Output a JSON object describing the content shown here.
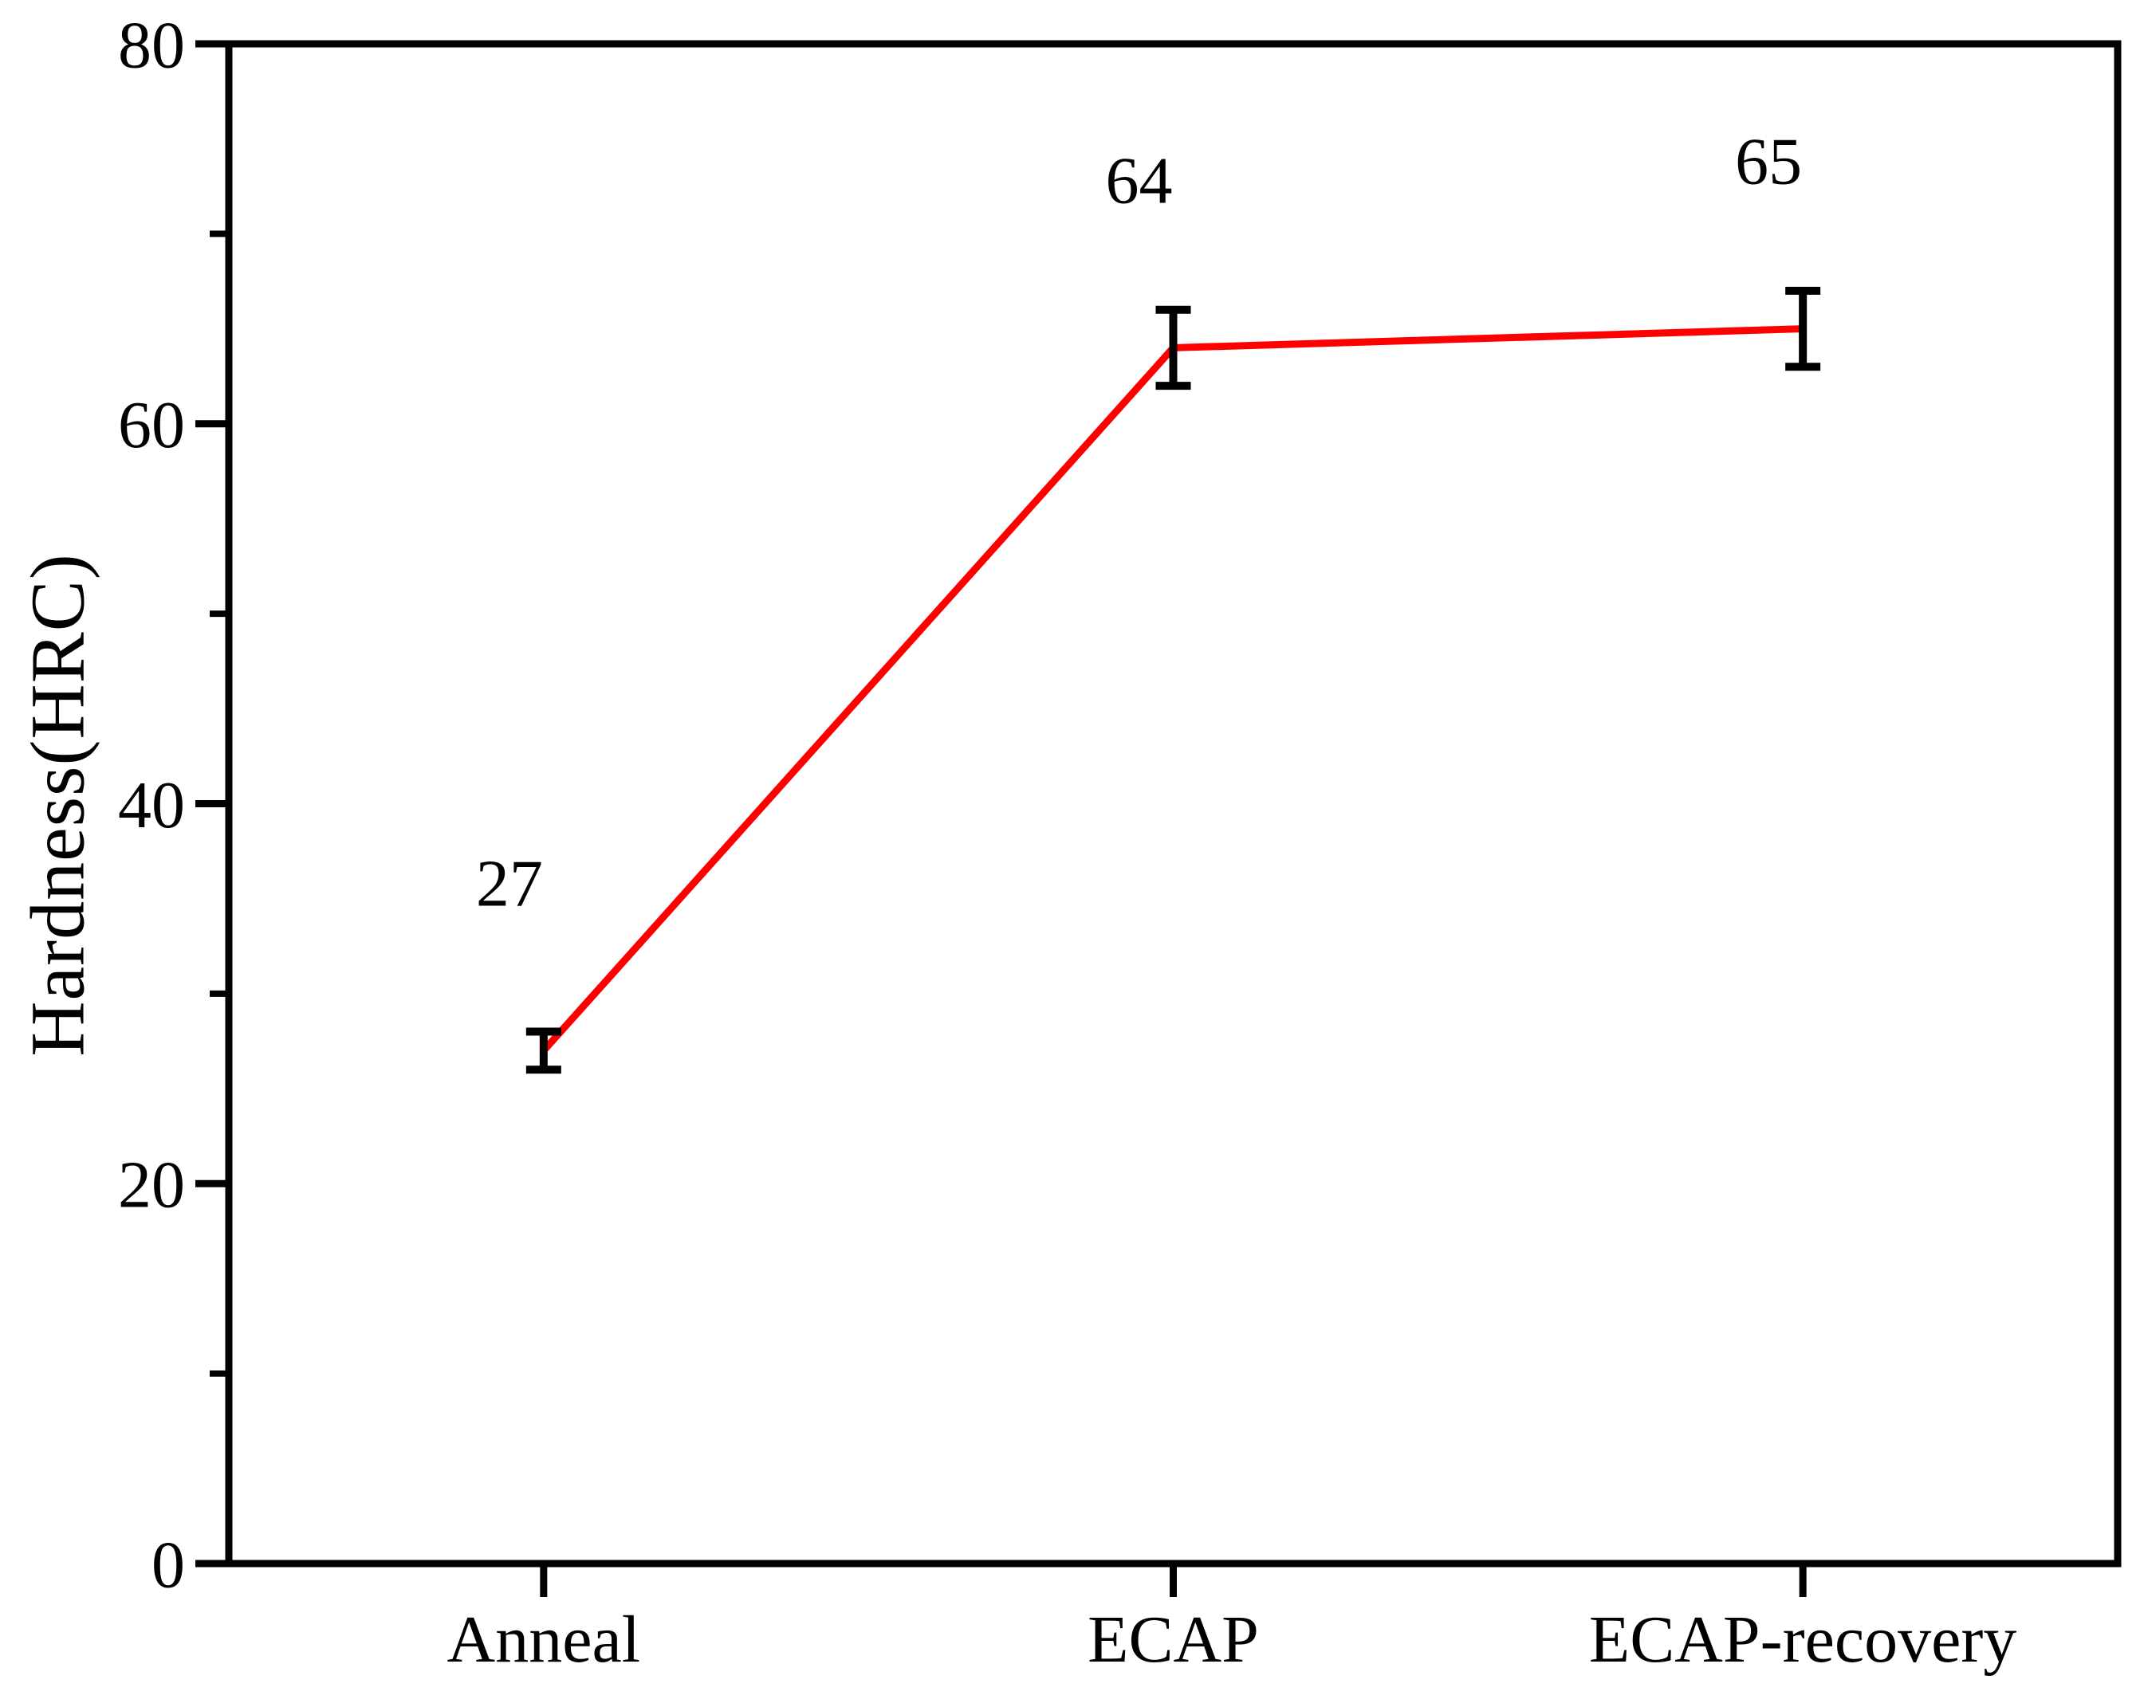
{
  "figure": {
    "background": "#ffffff"
  },
  "chart_data": {
    "type": "line",
    "title": "",
    "categories": [
      "Anneal",
      "ECAP",
      "ECAP-recovery"
    ],
    "series": [
      {
        "name": "Hardness",
        "values": [
          27,
          64,
          65
        ],
        "error_bars": [
          1,
          2,
          2
        ],
        "color": "#ff0000"
      }
    ],
    "point_labels": [
      "27",
      "64",
      "65"
    ],
    "xlabel": "",
    "ylabel": "Hardness(HRC)",
    "ylim": [
      0,
      80
    ],
    "yticks_major": [
      0,
      20,
      40,
      60,
      80
    ],
    "yticks_minor": [
      10,
      30,
      50,
      70
    ],
    "grid": false,
    "legend": "none",
    "axis_color": "#000000",
    "text_color": "#000000",
    "line_color": "#ff0000",
    "error_bar_color": "#000000"
  }
}
